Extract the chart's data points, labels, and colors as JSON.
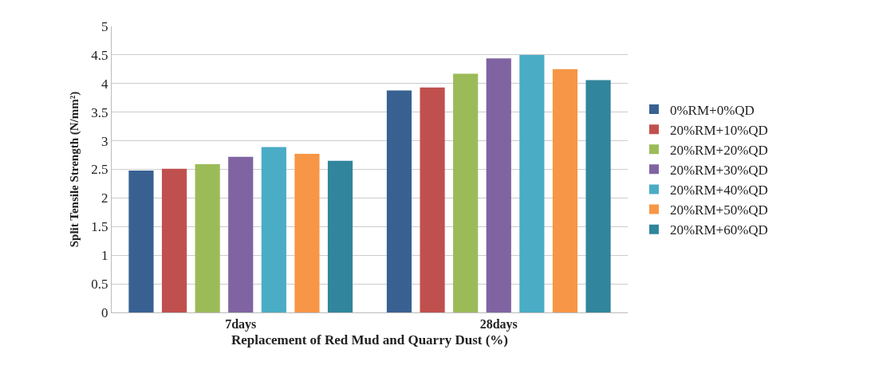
{
  "chart_data": {
    "type": "bar",
    "xlabel": "Replacement of Red Mud and Quarry Dust (%)",
    "ylabel": "Split Tensile Strength (N/mm²)",
    "categories": [
      "7days",
      "28days"
    ],
    "series": [
      {
        "name": "0%RM+0%QD",
        "color": "#386192",
        "values": [
          2.48,
          3.88
        ]
      },
      {
        "name": "20%RM+10%QD",
        "color": "#c0504d",
        "values": [
          2.51,
          3.93
        ]
      },
      {
        "name": "20%RM+20%QD",
        "color": "#9bbb59",
        "values": [
          2.59,
          4.17
        ]
      },
      {
        "name": "20%RM+30%QD",
        "color": "#8064a2",
        "values": [
          2.72,
          4.44
        ]
      },
      {
        "name": "20%RM+40%QD",
        "color": "#4bacc6",
        "values": [
          2.89,
          4.5
        ]
      },
      {
        "name": "20%RM+50%QD",
        "color": "#f79646",
        "values": [
          2.77,
          4.25
        ]
      },
      {
        "name": "20%RM+60%QD",
        "color": "#31859c",
        "values": [
          2.65,
          4.06
        ]
      }
    ],
    "ylim": [
      0,
      5
    ],
    "yticks": [
      0,
      0.5,
      1,
      1.5,
      2,
      2.5,
      3,
      3.5,
      4,
      4.5,
      5
    ],
    "grid": "y",
    "legend": "right"
  }
}
